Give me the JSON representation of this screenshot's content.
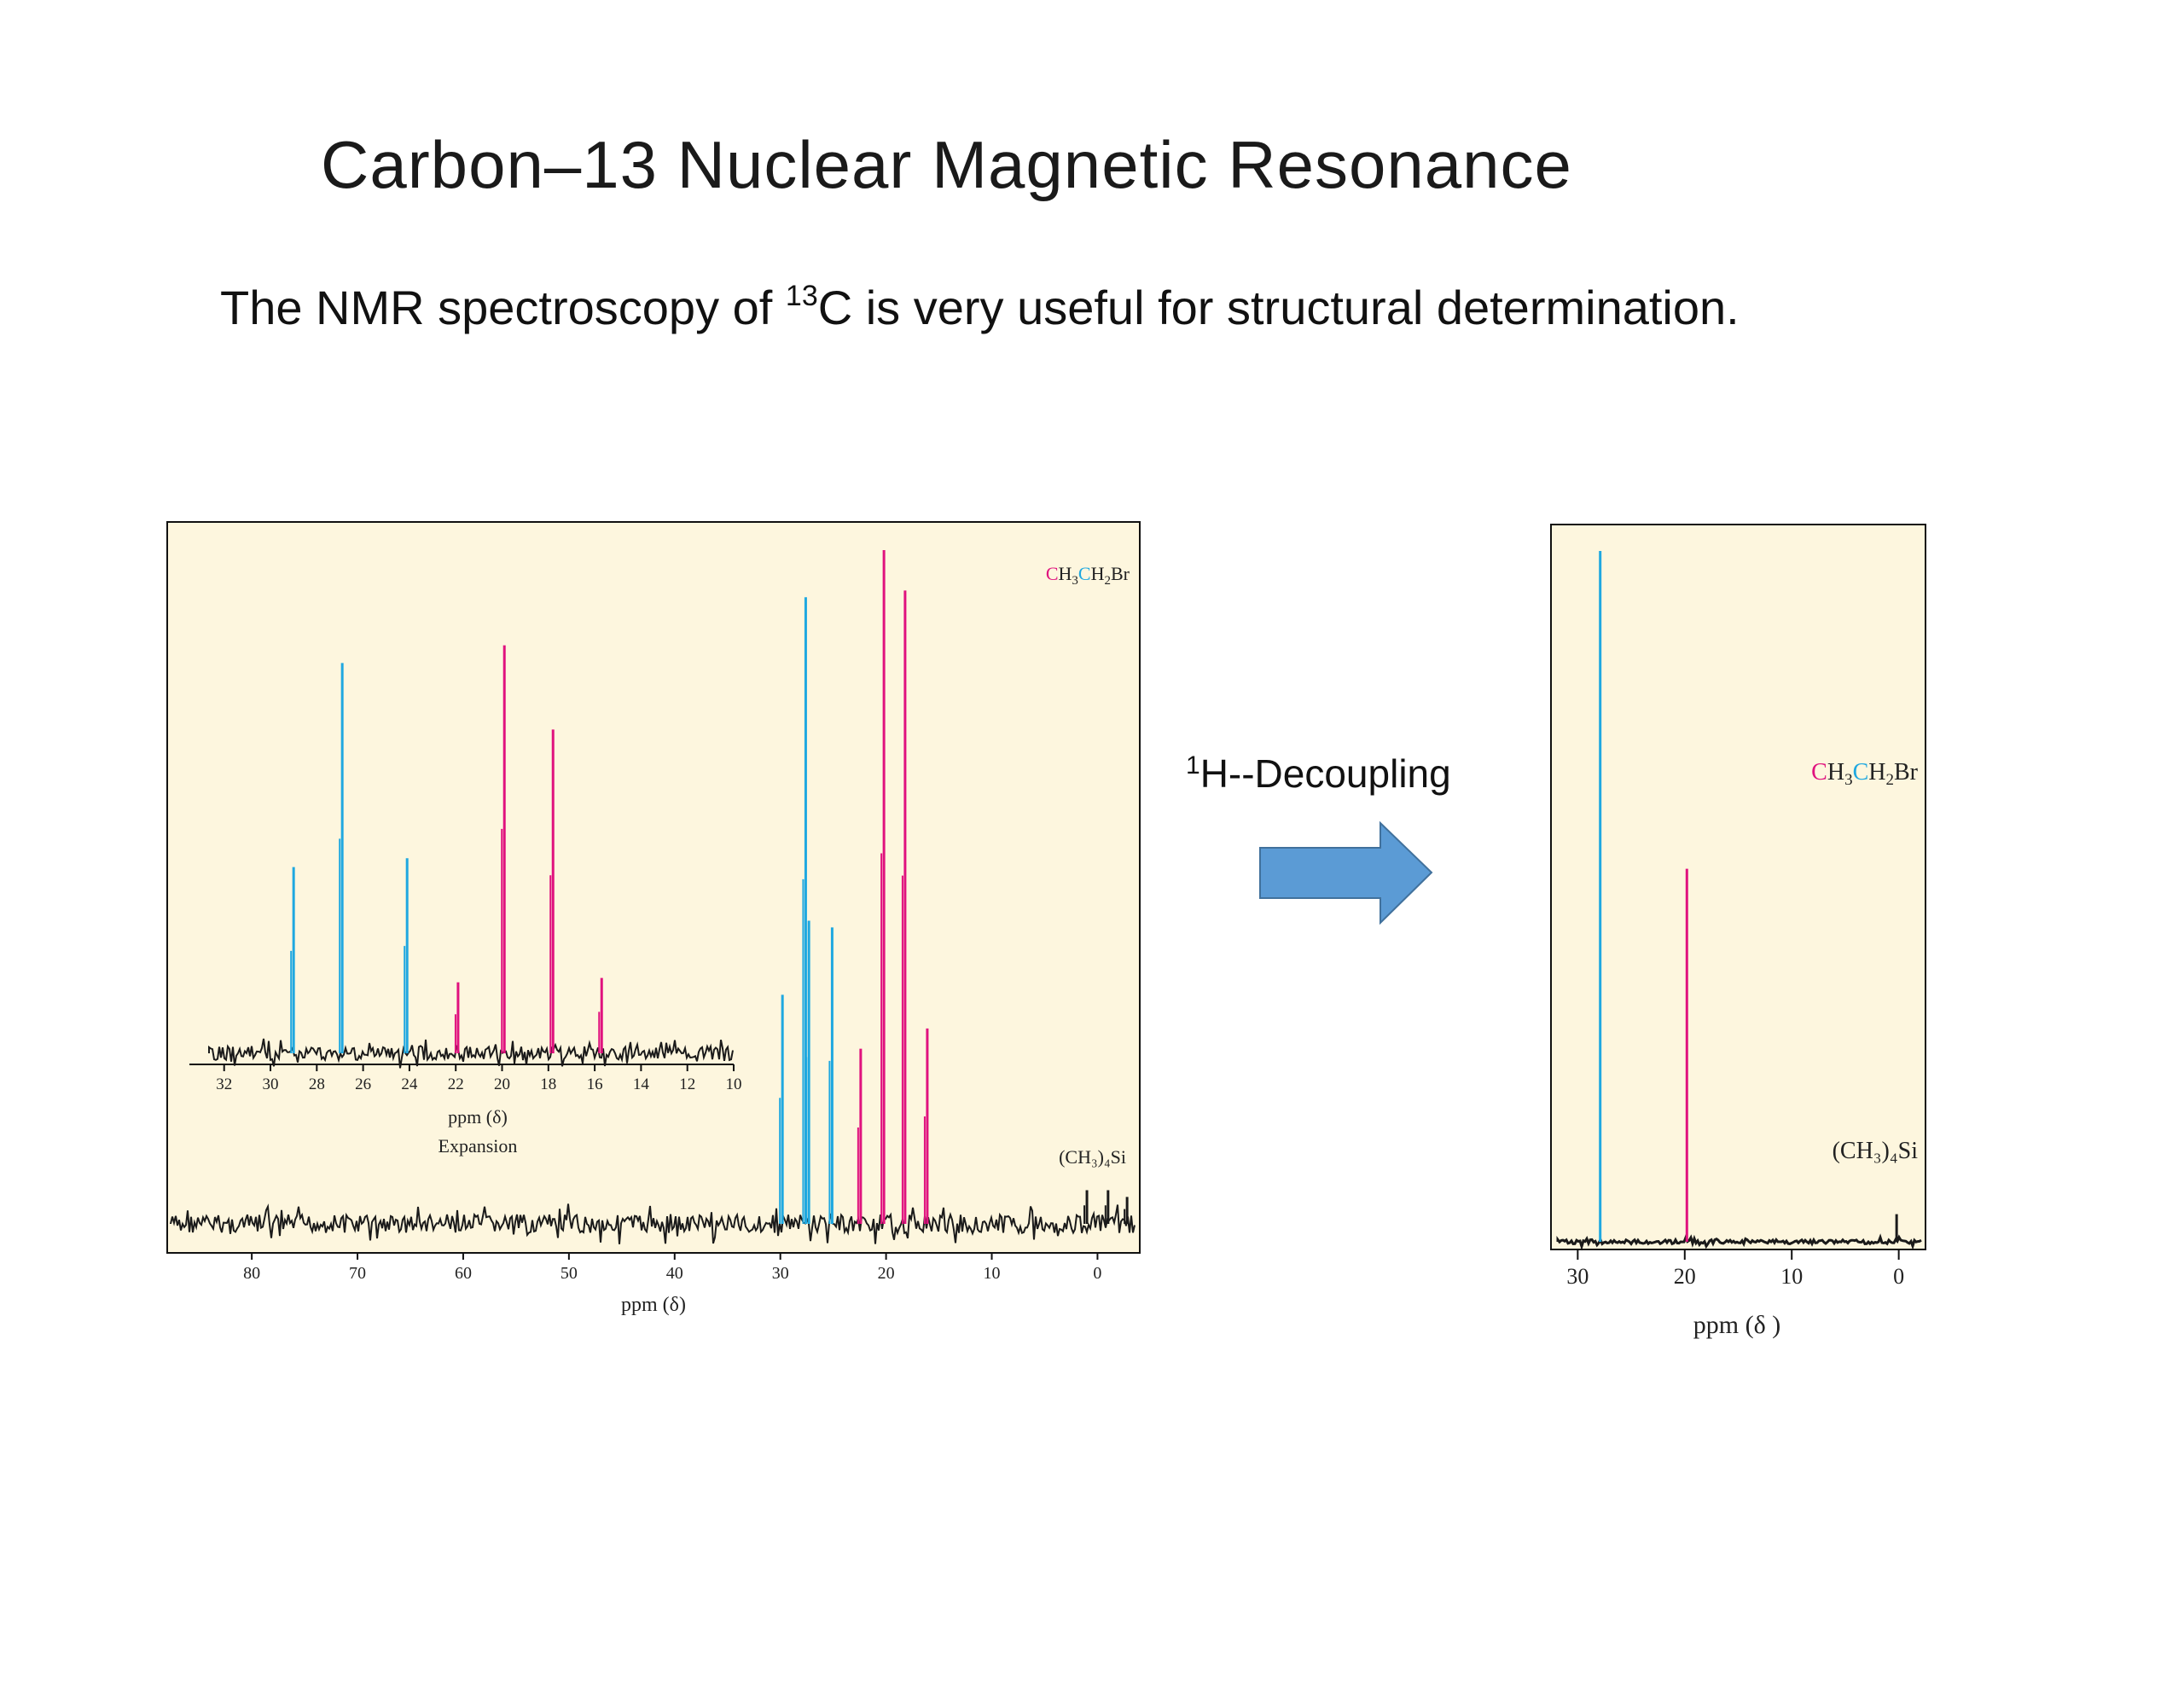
{
  "slide": {
    "title": "Carbon–13 Nuclear Magnetic Resonance",
    "subtitle_pre": "The NMR spectroscopy of ",
    "subtitle_sup": "13",
    "subtitle_post": "C is very useful for structural determination.",
    "arrow_label_sup": "1",
    "arrow_label": "H--Decoupling"
  },
  "colors": {
    "ch2": "#1fa8e0",
    "ch3": "#e0127e",
    "noise": "#1a1a1a",
    "panel_bg": "#fdf6de",
    "arrow": "#5b9bd5"
  },
  "chart_data": [
    {
      "type": "line",
      "name": "coupled-spectrum",
      "compound": {
        "c1": "C",
        "h3": "H",
        "sub3": "3",
        "c2": "C",
        "h2br": "H",
        "sub2": "2",
        "br": "Br"
      },
      "tms_label": "(CH₃)₄Si",
      "xlabel": "ppm (δ)",
      "xlim": [
        88,
        -4
      ],
      "xticks": [
        80,
        70,
        60,
        50,
        40,
        30,
        20,
        10,
        0
      ],
      "series": [
        {
          "name": "CH2Br quartet",
          "color": "ch2",
          "peaks": [
            {
              "x": 29.8,
              "h": 0.34
            },
            {
              "x": 27.6,
              "h": 0.93
            },
            {
              "x": 27.3,
              "h": 0.45
            },
            {
              "x": 25.1,
              "h": 0.44
            }
          ]
        },
        {
          "name": "CH3 triplet",
          "color": "ch3",
          "peaks": [
            {
              "x": 22.4,
              "h": 0.26
            },
            {
              "x": 20.2,
              "h": 1.0
            },
            {
              "x": 18.2,
              "h": 0.94
            },
            {
              "x": 16.1,
              "h": 0.29
            }
          ]
        },
        {
          "name": "TMS",
          "color": "noise",
          "peaks": [
            {
              "x": 1.0,
              "h": 0.05
            },
            {
              "x": -1.0,
              "h": 0.05
            },
            {
              "x": -2.8,
              "h": 0.04
            }
          ]
        }
      ],
      "inset": {
        "xlabel": "ppm (δ)",
        "caption": "Expansion",
        "xlim": [
          33.5,
          10
        ],
        "xticks": [
          32,
          30,
          28,
          26,
          24,
          22,
          20,
          18,
          16,
          14,
          12,
          10
        ],
        "series": [
          {
            "name": "CH2Br quartet",
            "color": "ch2",
            "peaks": [
              {
                "x": 29.0,
                "h": 0.42
              },
              {
                "x": 26.9,
                "h": 0.88
              },
              {
                "x": 24.1,
                "h": 0.44
              }
            ]
          },
          {
            "name": "CH3 triplet",
            "color": "ch3",
            "peaks": [
              {
                "x": 21.9,
                "h": 0.16
              },
              {
                "x": 19.9,
                "h": 0.92
              },
              {
                "x": 17.8,
                "h": 0.73
              },
              {
                "x": 15.7,
                "h": 0.17
              }
            ]
          }
        ]
      }
    },
    {
      "type": "line",
      "name": "decoupled-spectrum",
      "compound": {
        "c1": "C",
        "h3": "H",
        "sub3": "3",
        "c2": "C",
        "h2br": "H",
        "sub2": "2",
        "br": "Br"
      },
      "tms_label": "(CH₃)₄Si",
      "xlabel": "ppm (δ )",
      "xlim": [
        32.5,
        -2.5
      ],
      "xticks": [
        30,
        20,
        10,
        0
      ],
      "series": [
        {
          "name": "CH2Br",
          "color": "ch2",
          "peaks": [
            {
              "x": 27.9,
              "h": 1.0
            }
          ]
        },
        {
          "name": "CH3",
          "color": "ch3",
          "peaks": [
            {
              "x": 19.8,
              "h": 0.54
            }
          ]
        },
        {
          "name": "TMS",
          "color": "noise",
          "peaks": [
            {
              "x": 0.2,
              "h": 0.04
            }
          ]
        }
      ]
    }
  ]
}
